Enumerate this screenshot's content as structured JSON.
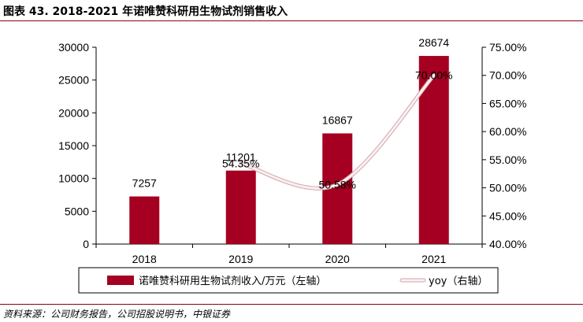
{
  "figure": {
    "title": "图表 43. 2018-2021 年诺唯赞科研用生物试剂销售收入",
    "source": "资料来源：公司财务报告，公司招股说明书，中银证券"
  },
  "chart_data": {
    "type": "bar",
    "categories": [
      "2018",
      "2019",
      "2020",
      "2021"
    ],
    "series": [
      {
        "name": "诺唯赞科研用生物试剂收入/万元（左轴）",
        "type": "bar",
        "axis": "left",
        "values": [
          7257,
          11201,
          16867,
          28674
        ],
        "labels": [
          "7257",
          "11201",
          "16867",
          "28674"
        ],
        "color": "#a50021"
      },
      {
        "name": "yoy（右轴）",
        "type": "line",
        "axis": "right",
        "x": [
          "2019",
          "2020",
          "2021"
        ],
        "values": [
          54.35,
          50.58,
          70.0
        ],
        "labels": [
          "54.35%",
          "50.58%",
          "70.00%"
        ],
        "color": "#f2d6da"
      }
    ],
    "left_axis": {
      "range": [
        0,
        30000
      ],
      "ticks": [
        0,
        5000,
        10000,
        15000,
        20000,
        25000,
        30000
      ],
      "tick_labels": [
        "0",
        "5000",
        "10000",
        "15000",
        "20000",
        "25000",
        "30000"
      ]
    },
    "right_axis": {
      "range": [
        40,
        75
      ],
      "ticks": [
        40,
        45,
        50,
        55,
        60,
        65,
        70,
        75
      ],
      "tick_labels": [
        "40.00%",
        "45.00%",
        "50.00%",
        "55.00%",
        "60.00%",
        "65.00%",
        "70.00%",
        "75.00%"
      ]
    },
    "grid": false,
    "legend_position": "bottom"
  }
}
